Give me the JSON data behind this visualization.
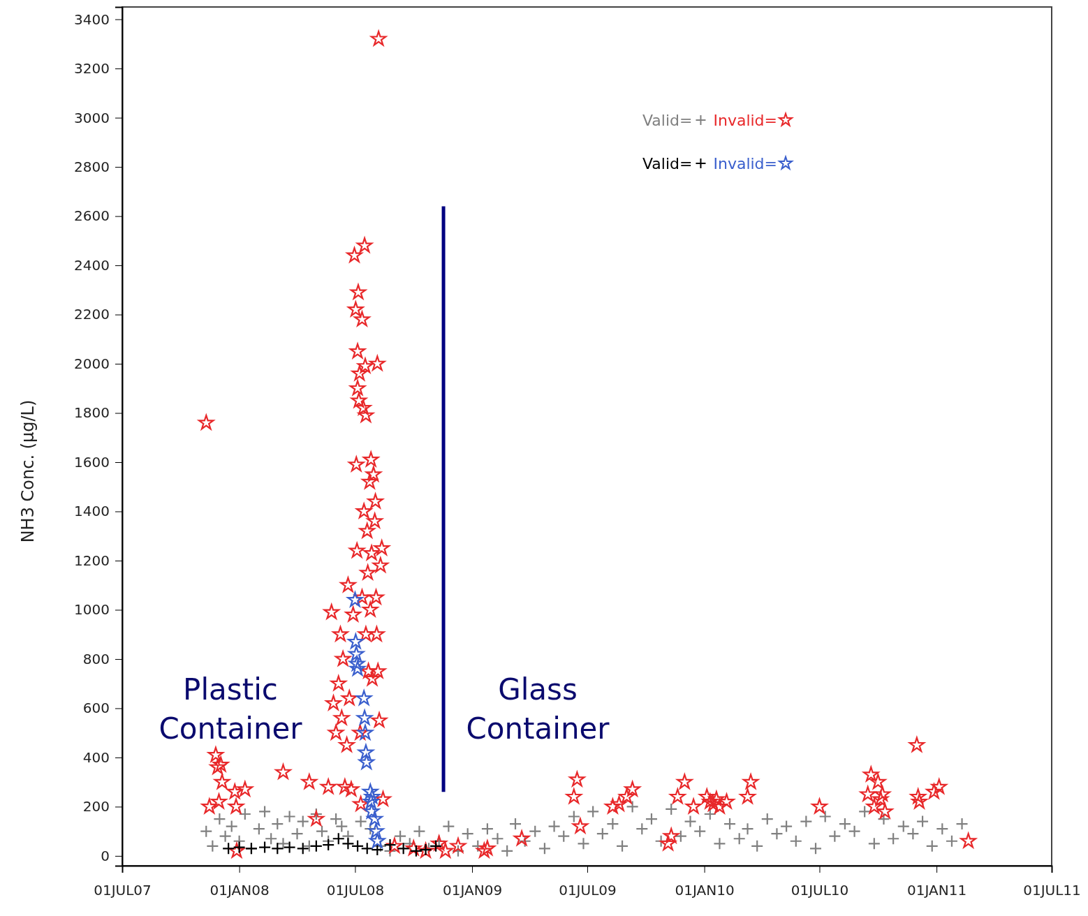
{
  "chart_data": {
    "type": "scatter",
    "ylabel": "NH3 Conc. (μg/L)",
    "xlim": [
      "2007-07-01",
      "2011-07-01"
    ],
    "xticks": [
      {
        "value": "2007-07-01",
        "label": "01JUL07"
      },
      {
        "value": "2008-01-01",
        "label": "01JAN08"
      },
      {
        "value": "2008-07-01",
        "label": "01JUL08"
      },
      {
        "value": "2009-01-01",
        "label": "01JAN09"
      },
      {
        "value": "2009-07-01",
        "label": "01JUL09"
      },
      {
        "value": "2010-01-01",
        "label": "01JAN10"
      },
      {
        "value": "2010-07-01",
        "label": "01JUL10"
      },
      {
        "value": "2011-01-01",
        "label": "01JAN11"
      },
      {
        "value": "2011-07-01",
        "label": "01JUL11"
      }
    ],
    "ylim": [
      -40,
      3450
    ],
    "yticks": [
      0,
      200,
      400,
      600,
      800,
      1000,
      1200,
      1400,
      1600,
      1800,
      2000,
      2200,
      2400,
      2600,
      2800,
      3000,
      3200,
      3400
    ],
    "grid": false,
    "legend": "top right",
    "annotations": [
      "Plastic Container",
      "Glass Container"
    ],
    "series": [
      {
        "name": "Valid=",
        "color": "#808080",
        "marker": "cross",
        "x": [
          "2007-11-10",
          "2007-11-20",
          "2007-12-01",
          "2007-12-10",
          "2007-12-20",
          "2008-01-01",
          "2008-01-10",
          "2008-01-20",
          "2008-02-01",
          "2008-02-10",
          "2008-02-20",
          "2008-03-01",
          "2008-03-10",
          "2008-03-20",
          "2008-04-01",
          "2008-04-10",
          "2008-04-20",
          "2008-05-01",
          "2008-05-10",
          "2008-05-20",
          "2008-06-01",
          "2008-06-10",
          "2008-06-20",
          "2008-07-10",
          "2008-07-25",
          "2008-08-10",
          "2008-08-25",
          "2008-09-10",
          "2008-09-25",
          "2008-10-10",
          "2008-10-25",
          "2008-11-10",
          "2008-11-25",
          "2008-12-10",
          "2008-12-25",
          "2009-01-10",
          "2009-01-25",
          "2009-02-10",
          "2009-02-25",
          "2009-03-10",
          "2009-03-25",
          "2009-04-10",
          "2009-04-25",
          "2009-05-10",
          "2009-05-25",
          "2009-06-10",
          "2009-06-25",
          "2009-07-10",
          "2009-07-25",
          "2009-08-10",
          "2009-08-25",
          "2009-09-10",
          "2009-09-25",
          "2009-10-10",
          "2009-10-25",
          "2009-11-10",
          "2009-11-25",
          "2009-12-10",
          "2009-12-25",
          "2010-01-10",
          "2010-01-25",
          "2010-02-10",
          "2010-02-25",
          "2010-03-10",
          "2010-03-25",
          "2010-04-10",
          "2010-04-25",
          "2010-05-10",
          "2010-05-25",
          "2010-06-10",
          "2010-06-25",
          "2010-07-10",
          "2010-07-25",
          "2010-08-10",
          "2010-08-25",
          "2010-09-10",
          "2010-09-25",
          "2010-10-10",
          "2010-10-25",
          "2010-11-10",
          "2010-11-25",
          "2010-12-10",
          "2010-12-25",
          "2011-01-10",
          "2011-01-25",
          "2011-02-10"
        ],
        "values": [
          100,
          40,
          150,
          80,
          120,
          60,
          170,
          30,
          110,
          180,
          70,
          130,
          50,
          160,
          90,
          140,
          40,
          170,
          100,
          60,
          150,
          120,
          80,
          140,
          110,
          40,
          20,
          80,
          50,
          100,
          30,
          60,
          120,
          20,
          90,
          40,
          110,
          70,
          20,
          130,
          60,
          100,
          30,
          120,
          80,
          160,
          50,
          180,
          90,
          130,
          40,
          200,
          110,
          150,
          60,
          190,
          80,
          140,
          100,
          170,
          50,
          130,
          70,
          110,
          40,
          150,
          90,
          120,
          60,
          140,
          30,
          160,
          80,
          130,
          100,
          180,
          50,
          150,
          70,
          120,
          90,
          140,
          40,
          110,
          60,
          130
        ]
      },
      {
        "name": "Invalid=",
        "color": "#e8282a",
        "marker": "star",
        "x": [
          "2007-11-10",
          "2007-11-15",
          "2007-11-25",
          "2007-11-28",
          "2007-12-03",
          "2007-11-30",
          "2007-12-05",
          "2007-12-25",
          "2007-12-27",
          "2007-12-28",
          "2008-01-10",
          "2008-03-10",
          "2008-04-20",
          "2008-05-01",
          "2008-05-20",
          "2008-05-25",
          "2008-05-28",
          "2008-06-01",
          "2008-06-05",
          "2008-06-08",
          "2008-06-10",
          "2008-06-12",
          "2008-06-15",
          "2008-06-18",
          "2008-06-20",
          "2008-06-22",
          "2008-06-25",
          "2008-06-28",
          "2008-06-30",
          "2008-07-02",
          "2008-07-03",
          "2008-07-04",
          "2008-07-05",
          "2008-07-05",
          "2008-07-06",
          "2008-07-07",
          "2008-07-08",
          "2008-07-09",
          "2008-07-10",
          "2008-07-12",
          "2008-07-12",
          "2008-07-14",
          "2008-07-15",
          "2008-07-16",
          "2008-07-17",
          "2008-07-18",
          "2008-07-18",
          "2008-07-20",
          "2008-07-21",
          "2008-07-22",
          "2008-07-24",
          "2008-07-25",
          "2008-07-26",
          "2008-07-27",
          "2008-07-28",
          "2008-07-30",
          "2008-08-01",
          "2008-08-02",
          "2008-08-03",
          "2008-08-04",
          "2008-08-05",
          "2008-08-06",
          "2008-08-07",
          "2008-08-08",
          "2008-08-10",
          "2008-08-12",
          "2008-08-14",
          "2008-09-01",
          "2008-10-01",
          "2008-10-20",
          "2008-11-10",
          "2008-11-20",
          "2008-12-10",
          "2009-01-20",
          "2009-01-25",
          "2009-03-20",
          "2009-06-10",
          "2009-06-15",
          "2009-06-20",
          "2009-08-10",
          "2009-08-20",
          "2009-09-01",
          "2009-09-10",
          "2009-11-05",
          "2009-11-10",
          "2009-11-20",
          "2009-12-01",
          "2009-12-15",
          "2010-01-05",
          "2010-01-10",
          "2010-01-15",
          "2010-01-20",
          "2010-01-25",
          "2010-02-05",
          "2010-03-10",
          "2010-03-15",
          "2010-07-01",
          "2010-09-15",
          "2010-09-20",
          "2010-09-25",
          "2010-10-01",
          "2010-10-05",
          "2010-10-08",
          "2010-10-12",
          "2010-12-01",
          "2010-12-03",
          "2010-12-05",
          "2010-12-28",
          "2011-01-05",
          "2011-02-20"
        ],
        "values": [
          1760,
          200,
          410,
          360,
          370,
          220,
          300,
          260,
          200,
          20,
          270,
          340,
          300,
          150,
          280,
          990,
          620,
          500,
          700,
          900,
          560,
          800,
          280,
          450,
          1100,
          640,
          270,
          980,
          2440,
          2220,
          1590,
          1240,
          1900,
          2050,
          2290,
          1850,
          1960,
          500,
          210,
          2180,
          1050,
          1820,
          1400,
          2480,
          1990,
          1790,
          900,
          1320,
          1150,
          750,
          1520,
          1000,
          1610,
          1230,
          720,
          1550,
          1360,
          1440,
          1050,
          900,
          2000,
          750,
          3320,
          550,
          1180,
          1250,
          230,
          40,
          30,
          20,
          50,
          20,
          40,
          20,
          30,
          70,
          240,
          310,
          120,
          200,
          210,
          240,
          270,
          50,
          80,
          240,
          300,
          200,
          240,
          220,
          210,
          230,
          200,
          220,
          240,
          300,
          200,
          250,
          330,
          200,
          300,
          230,
          250,
          180,
          450,
          240,
          220,
          260,
          280,
          60
        ]
      },
      {
        "name": "Valid=",
        "color": "#000000",
        "marker": "cross",
        "x": [
          "2007-12-15",
          "2008-01-01",
          "2008-01-20",
          "2008-02-10",
          "2008-03-01",
          "2008-03-20",
          "2008-04-10",
          "2008-05-01",
          "2008-05-20",
          "2008-06-05",
          "2008-06-20",
          "2008-07-05",
          "2008-07-20",
          "2008-08-05",
          "2008-08-25",
          "2008-09-15",
          "2008-10-05",
          "2008-10-20",
          "2008-11-05"
        ],
        "values": [
          30,
          35,
          30,
          35,
          30,
          35,
          30,
          40,
          45,
          70,
          50,
          40,
          30,
          25,
          45,
          30,
          20,
          25,
          40
        ]
      },
      {
        "name": "Invalid=",
        "color": "#3a5fcd",
        "marker": "star",
        "x": [
          "2008-07-01",
          "2008-07-02",
          "2008-07-03",
          "2008-07-04",
          "2008-07-05",
          "2008-07-15",
          "2008-07-16",
          "2008-07-17",
          "2008-07-18",
          "2008-07-19",
          "2008-07-25",
          "2008-07-26",
          "2008-07-27",
          "2008-07-28",
          "2008-08-01",
          "2008-08-03",
          "2008-08-05"
        ],
        "values": [
          1040,
          870,
          820,
          780,
          760,
          640,
          560,
          500,
          420,
          380,
          260,
          220,
          180,
          240,
          150,
          100,
          60
        ]
      },
      {
        "type": "line",
        "color": "#000080",
        "x": [
          "2008-11-17",
          "2008-11-17"
        ],
        "values": [
          260,
          2640
        ]
      }
    ]
  }
}
